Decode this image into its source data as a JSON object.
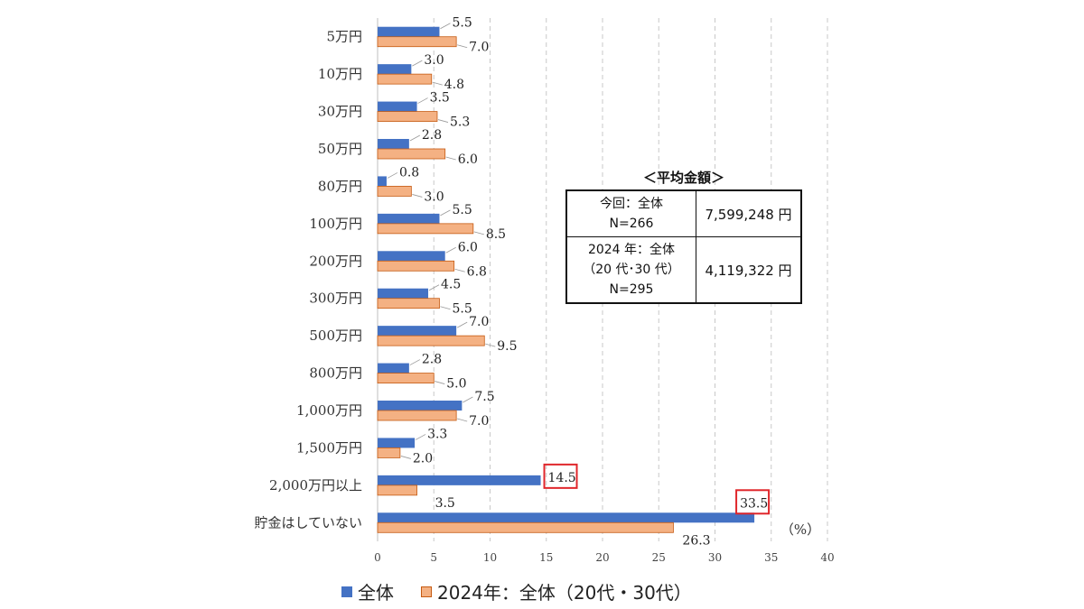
{
  "chart_data": {
    "type": "bar",
    "orientation": "horizontal",
    "categories": [
      "5万円",
      "10万円",
      "30万円",
      "50万円",
      "80万円",
      "100万円",
      "200万円",
      "300万円",
      "500万円",
      "800万円",
      "1,000万円",
      "1,500万円",
      "2,000万円以上",
      "貯金はしていない"
    ],
    "series": [
      {
        "name": "全体",
        "color": "#4472C4",
        "values": [
          5.5,
          3.0,
          3.5,
          2.8,
          0.8,
          5.5,
          6.0,
          4.5,
          7.0,
          2.8,
          7.5,
          3.3,
          14.5,
          33.5
        ]
      },
      {
        "name": "2024年：全体（20代・30代）",
        "color": "#F4B183",
        "values": [
          7.0,
          4.8,
          5.3,
          6.0,
          3.0,
          8.5,
          6.8,
          5.5,
          9.5,
          5.0,
          7.0,
          2.0,
          3.5,
          26.3
        ]
      }
    ],
    "xlim": [
      0,
      40
    ],
    "xticks": [
      "0",
      "5",
      "10",
      "15",
      "20",
      "25",
      "30",
      "35",
      "40"
    ],
    "unit_label": "（%）",
    "highlighted": [
      "14.5",
      "33.5"
    ],
    "grid": "vertical dashed",
    "legend_position": "bottom"
  },
  "legend": {
    "items": [
      {
        "label": "全体"
      },
      {
        "label": "2024年：全体（20代・30代）"
      }
    ]
  },
  "average_box": {
    "title": "＜平均金額＞",
    "rows": [
      {
        "lines": [
          "今回：全体",
          "N=266"
        ],
        "value": "7,599,248 円"
      },
      {
        "lines": [
          "2024 年：全体",
          "（20 代･30 代）",
          "N=295"
        ],
        "value": "4,119,322 円"
      }
    ]
  }
}
